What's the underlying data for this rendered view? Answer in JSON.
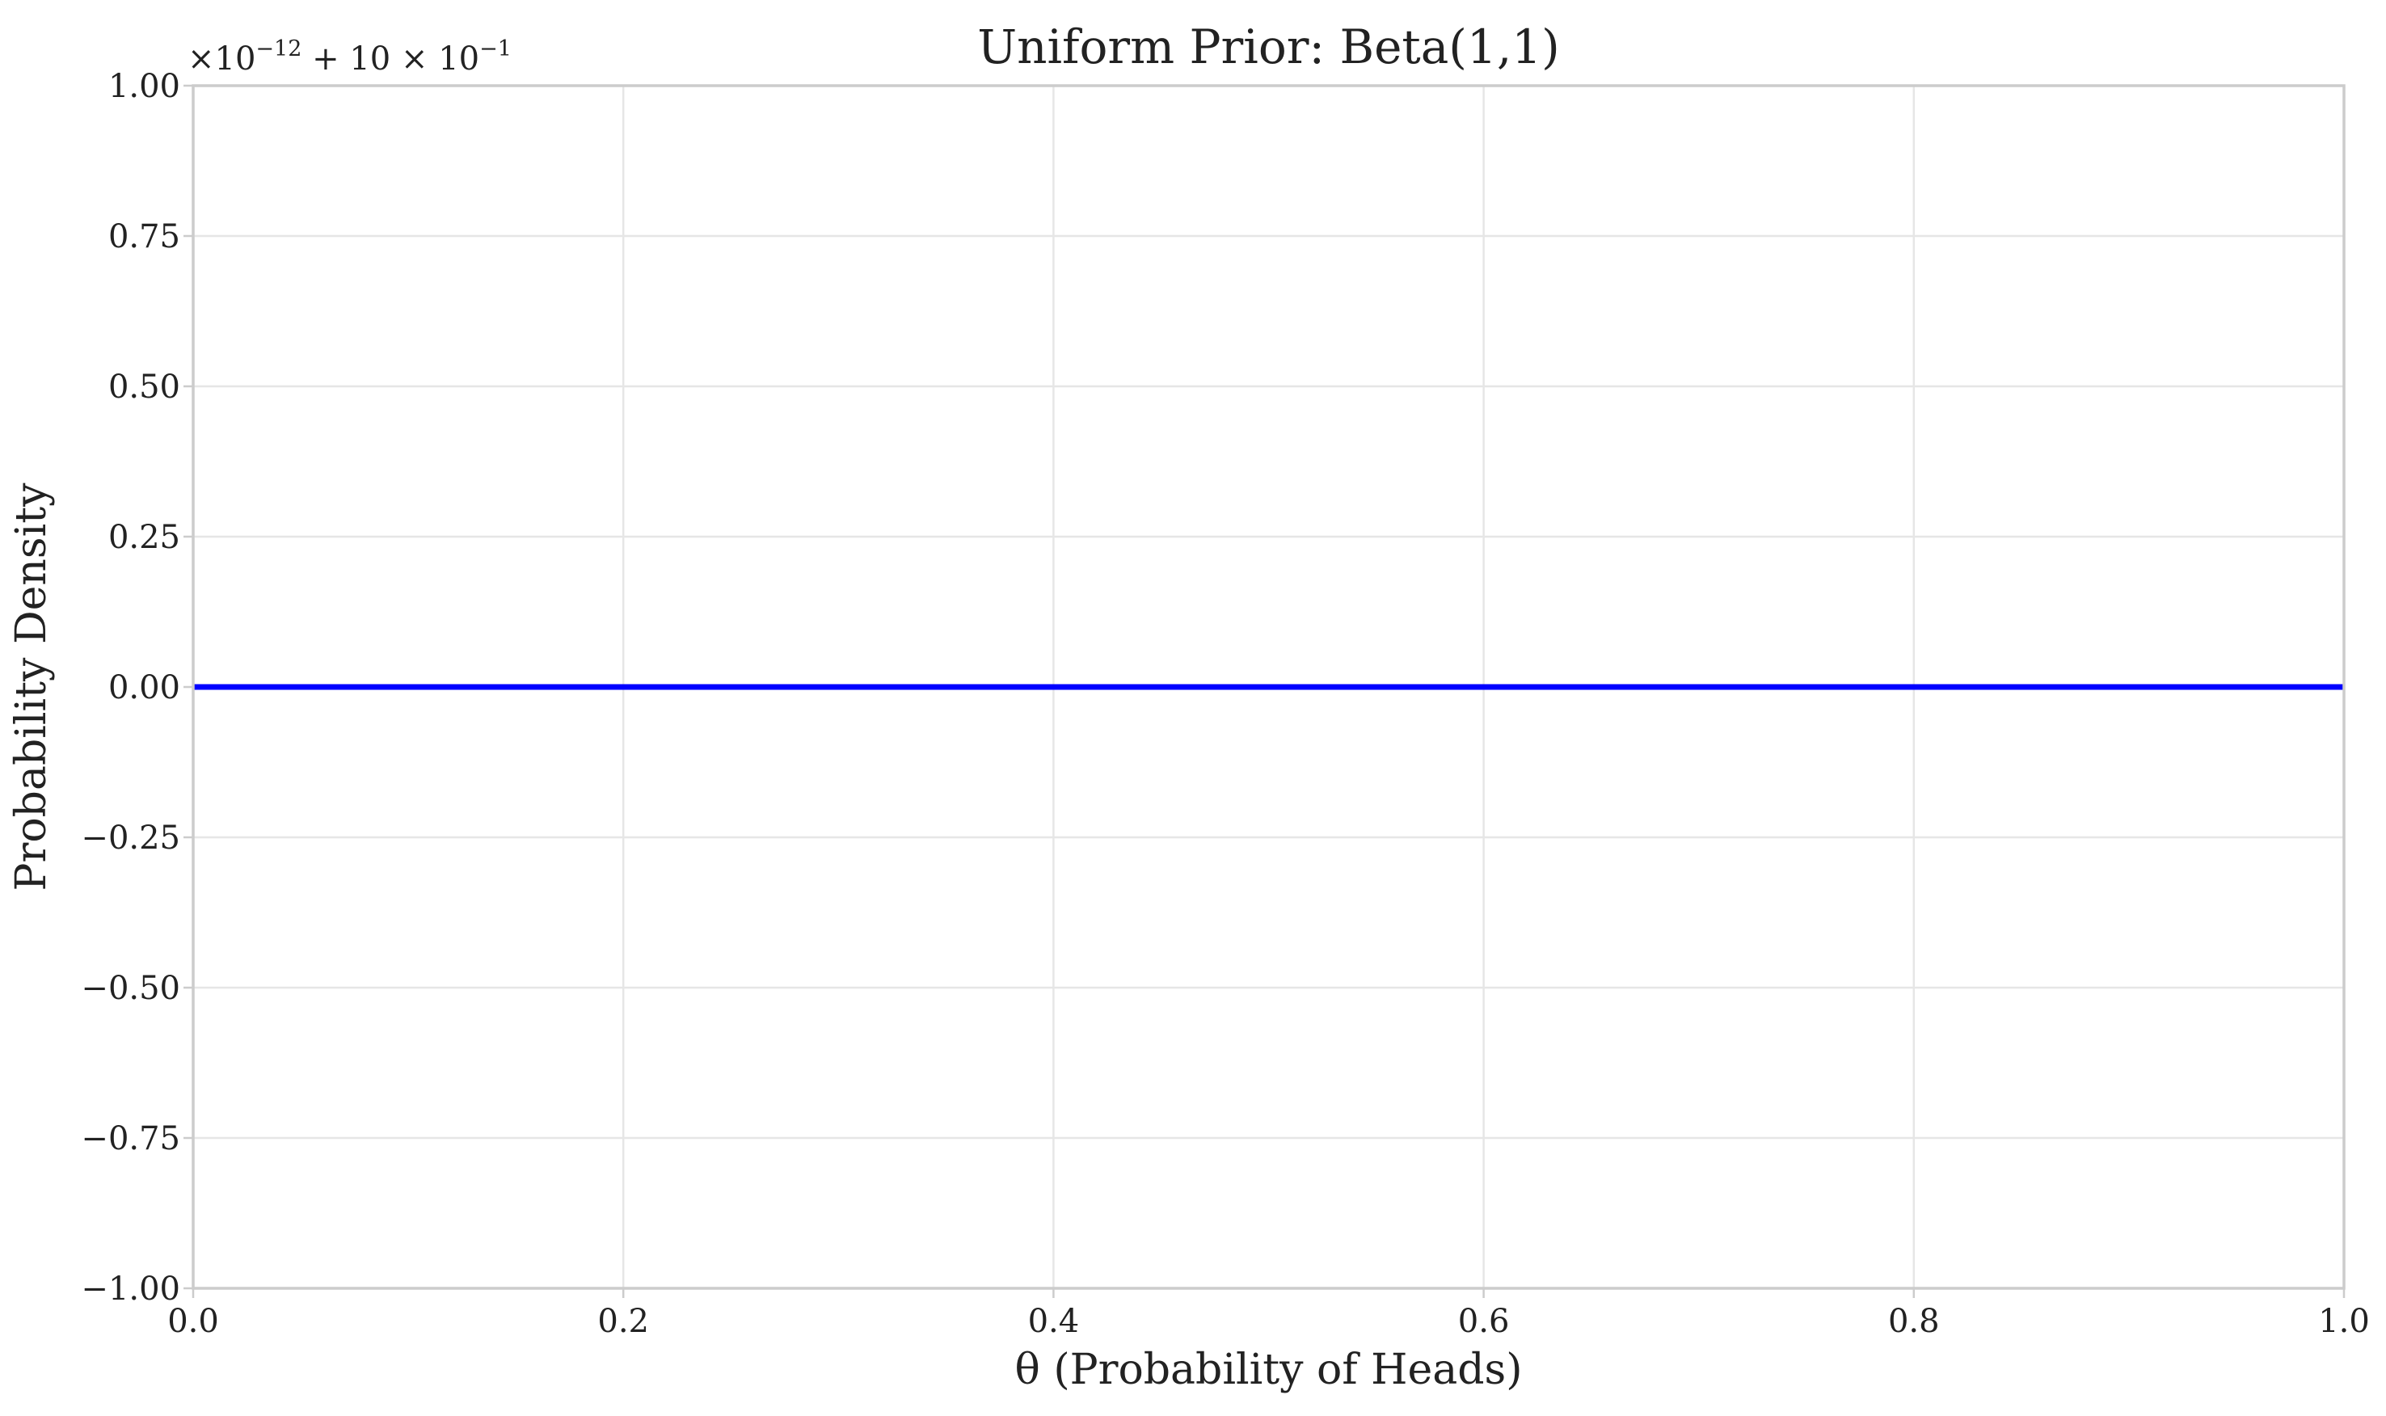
{
  "chart_data": {
    "type": "line",
    "title": "Uniform Prior: Beta(1,1)",
    "xlabel": "θ (Probability of Heads)",
    "ylabel": "Probability Density",
    "xlim": [
      0,
      1
    ],
    "ylim": [
      -1,
      1
    ],
    "x_ticks": [
      "0.0",
      "0.2",
      "0.4",
      "0.6",
      "0.8",
      "1.0"
    ],
    "y_ticks": [
      "1.00",
      "0.75",
      "0.50",
      "0.25",
      "0.00",
      "−0.25",
      "−0.50",
      "−0.75",
      "−1.00"
    ],
    "y_offset_text": {
      "part1_base": "×10",
      "part1_exp": "−12",
      "part2_base": " + 10 × 10",
      "part2_exp": "−1"
    },
    "grid": true,
    "series": [
      {
        "color": "#0000ff",
        "x": [
          0.0,
          0.25,
          0.5,
          0.75,
          1.0
        ],
        "y": [
          0.0,
          0.0,
          0.0,
          0.0,
          0.0
        ]
      }
    ]
  }
}
